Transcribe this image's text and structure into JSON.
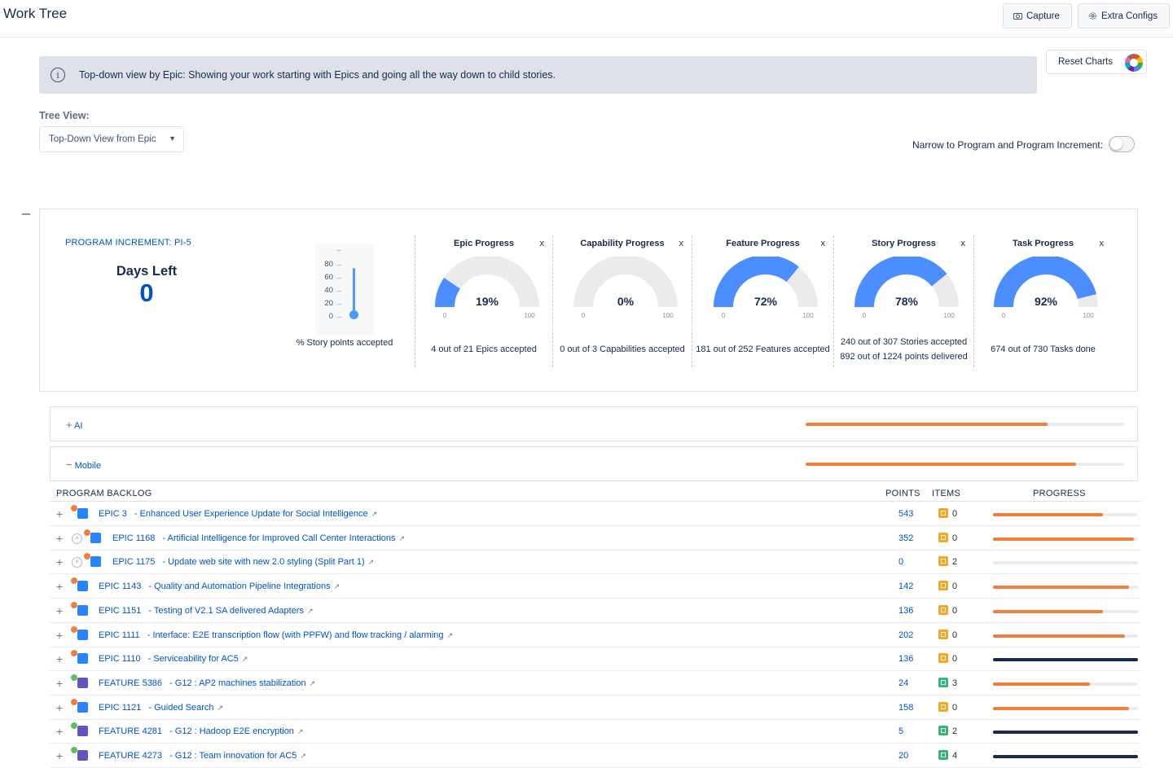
{
  "header": {
    "title": "Work Tree",
    "capture_label": "Capture",
    "extra_configs_label": "Extra Configs"
  },
  "info_banner": {
    "text": "Top-down view by Epic: Showing your work starting with Epics and going all the way down to child stories."
  },
  "reset_charts_label": "Reset Charts",
  "tree_view": {
    "label": "Tree View:",
    "selected": "Top-Down View from Epic"
  },
  "narrow_toggle": {
    "label": "Narrow to Program and Program Increment:",
    "on": false
  },
  "program_increment": {
    "title": "PROGRAM INCREMENT: PI-5",
    "days_left_label": "Days Left",
    "days_left_value": "0",
    "story_points_chart": {
      "ticks": [
        "80",
        "60",
        "40",
        "20",
        "0"
      ],
      "caption": "% Story points accepted",
      "value": 0
    }
  },
  "chart_data": [
    {
      "type": "gauge",
      "title": "Epic Progress",
      "value": 19,
      "value_label": "19%",
      "min": "0",
      "max": "100",
      "captions": [
        "4 out of 21 Epics accepted"
      ]
    },
    {
      "type": "gauge",
      "title": "Capability Progress",
      "value": 0,
      "value_label": "0%",
      "min": "0",
      "max": "100",
      "captions": [
        "0 out of 3 Capabilities accepted"
      ]
    },
    {
      "type": "gauge",
      "title": "Feature Progress",
      "value": 72,
      "value_label": "72%",
      "min": "0",
      "max": "100",
      "captions": [
        "181 out of 252 Features accepted"
      ]
    },
    {
      "type": "gauge",
      "title": "Story Progress",
      "value": 78,
      "value_label": "78%",
      "min": "0",
      "max": "100",
      "captions": [
        "240 out of 307 Stories accepted",
        "892 out of 1224 points delivered"
      ]
    },
    {
      "type": "gauge",
      "title": "Task Progress",
      "value": 92,
      "value_label": "92%",
      "min": "0",
      "max": "100",
      "captions": [
        "674 out of 730 Tasks done"
      ]
    }
  ],
  "gauge_close_label": "x",
  "colors": {
    "gauge_fill": "#4c8dff",
    "gauge_track": "#ebebeb",
    "progress_orange": "#f07f3c",
    "progress_navy": "#172b4d",
    "epic_dot": "#f07f3c",
    "feature_dot": "#5cbf5c",
    "epic_icon": "#2684ff",
    "feature_icon": "#6554c0",
    "items_yellow": "#f5a623",
    "items_green": "#36b37e"
  },
  "epic_groups": [
    {
      "expander": "+",
      "name": "AI",
      "progress": 0.76
    },
    {
      "expander": "−",
      "name": "Mobile",
      "progress": 0.85
    }
  ],
  "backlog": {
    "headers": {
      "name": "PROGRAM BACKLOG",
      "points": "POINTS",
      "items": "ITEMS",
      "progress": "PROGRESS"
    },
    "rows": [
      {
        "type": "epic",
        "key": "EPIC 3",
        "title": "- Enhanced User Experience Update for Social Intelligence",
        "points": "543",
        "items": "0",
        "items_kind": "yellow",
        "progress": 0.76,
        "bar": "orange",
        "indent": false
      },
      {
        "type": "epic",
        "key": "EPIC 1168",
        "title": "- Artificial Intelligence for Improved Call Center Interactions",
        "points": "352",
        "items": "0",
        "items_kind": "yellow",
        "progress": 0.97,
        "bar": "orange",
        "indent": true
      },
      {
        "type": "epic",
        "key": "EPIC 1175",
        "title": "- Update web site with new 2.0 styling (Split Part 1)",
        "points": "0",
        "items": "2",
        "items_kind": "yellow",
        "progress": 0,
        "bar": "orange",
        "indent": true
      },
      {
        "type": "epic",
        "key": "EPIC 1143",
        "title": "- Quality and Automation Pipeline Integrations",
        "points": "142",
        "items": "0",
        "items_kind": "yellow",
        "progress": 0.94,
        "bar": "orange",
        "indent": false
      },
      {
        "type": "epic",
        "key": "EPIC 1151",
        "title": "- Testing of V2.1 SA delivered Adapters",
        "points": "136",
        "items": "0",
        "items_kind": "yellow",
        "progress": 0.76,
        "bar": "orange",
        "indent": false
      },
      {
        "type": "epic",
        "key": "EPIC 1111",
        "title": "- Interface: E2E transcription flow (with PPFW) and flow tracking / alarming",
        "points": "202",
        "items": "0",
        "items_kind": "yellow",
        "progress": 0.91,
        "bar": "orange",
        "indent": false
      },
      {
        "type": "epic",
        "key": "EPIC 1110",
        "title": "- Serviceability for AC5",
        "points": "136",
        "items": "0",
        "items_kind": "yellow",
        "progress": 1.0,
        "bar": "navy",
        "indent": false
      },
      {
        "type": "feature",
        "key": "FEATURE 5386",
        "title": "- G12 : AP2 machines stabilization",
        "points": "24",
        "items": "3",
        "items_kind": "green",
        "progress": 0.67,
        "bar": "orange",
        "indent": false
      },
      {
        "type": "epic",
        "key": "EPIC 1121",
        "title": "- Guided Search",
        "points": "158",
        "items": "0",
        "items_kind": "yellow",
        "progress": 0.94,
        "bar": "orange",
        "indent": false
      },
      {
        "type": "feature",
        "key": "FEATURE 4281",
        "title": "- G12 : Hadoop E2E encryption",
        "points": "5",
        "items": "2",
        "items_kind": "green",
        "progress": 1.0,
        "bar": "navy",
        "indent": false
      },
      {
        "type": "feature",
        "key": "FEATURE 4273",
        "title": "- G12 : Team innovation for AC5",
        "points": "20",
        "items": "4",
        "items_kind": "green",
        "progress": 1.0,
        "bar": "navy",
        "indent": false
      }
    ]
  }
}
